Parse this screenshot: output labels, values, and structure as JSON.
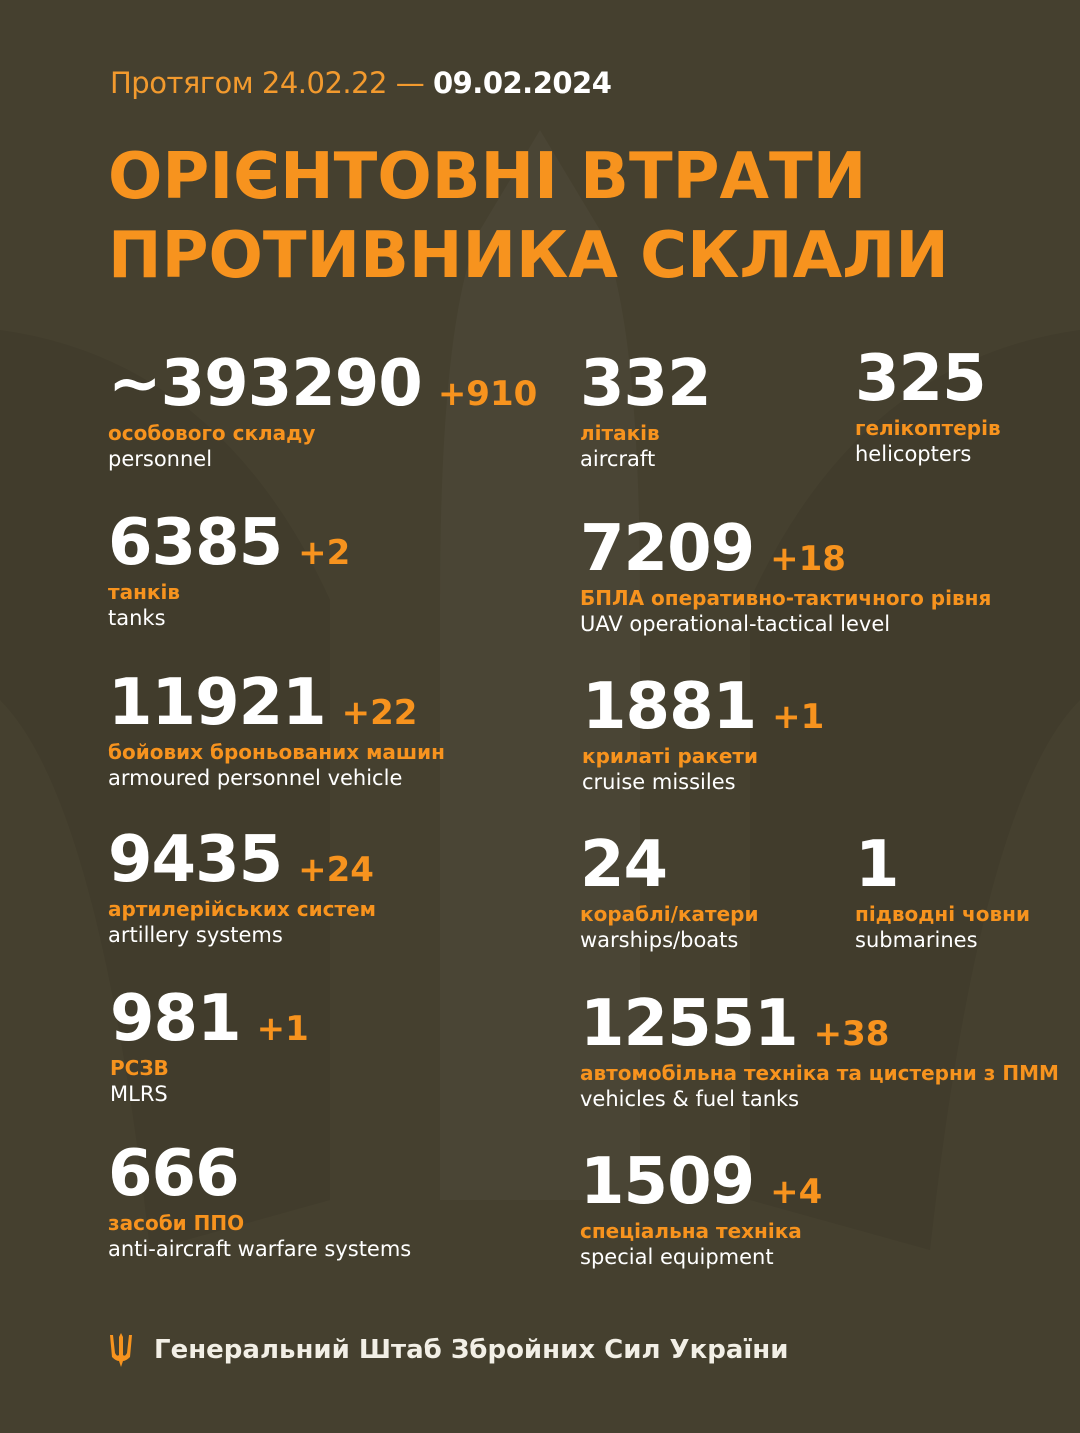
{
  "header": {
    "period_prefix": "Протягом 24.02.22 —",
    "period_end": "09.02.2024"
  },
  "title": {
    "line1": "ОРІЄНТОВНІ ВТРАТИ",
    "line2": "ПРОТИВНИКА СКЛАЛИ"
  },
  "colors": {
    "background": "#45402f",
    "accent": "#f7931e",
    "text": "#ffffff"
  },
  "items": [
    {
      "id": "personnel",
      "value": "~393290",
      "delta": "+910",
      "ua": "особового складу",
      "en": "personnel"
    },
    {
      "id": "aircraft",
      "value": "332",
      "delta": "",
      "ua": "літаків",
      "en": "aircraft"
    },
    {
      "id": "helicopters",
      "value": "325",
      "delta": "",
      "ua": "гелікоптерів",
      "en": "helicopters"
    },
    {
      "id": "tanks",
      "value": "6385",
      "delta": "+2",
      "ua": "танків",
      "en": "tanks"
    },
    {
      "id": "uav",
      "value": "7209",
      "delta": "+18",
      "ua": "БПЛА оперативно-тактичного рівня",
      "en": "UAV operational-tactical level"
    },
    {
      "id": "apv",
      "value": "11921",
      "delta": "+22",
      "ua": "бойових броньованих машин",
      "en": "armoured personnel vehicle"
    },
    {
      "id": "cruise-missiles",
      "value": "1881",
      "delta": "+1",
      "ua": "крилаті ракети",
      "en": "cruise missiles"
    },
    {
      "id": "artillery",
      "value": "9435",
      "delta": "+24",
      "ua": "артилерійських систем",
      "en": "artillery systems"
    },
    {
      "id": "warships",
      "value": "24",
      "delta": "",
      "ua": "кораблі/катери",
      "en": "warships/boats"
    },
    {
      "id": "submarines",
      "value": "1",
      "delta": "",
      "ua": "підводні човни",
      "en": "submarines"
    },
    {
      "id": "mlrs",
      "value": "981",
      "delta": "+1",
      "ua": "РСЗВ",
      "en": "MLRS"
    },
    {
      "id": "vehicles",
      "value": "12551",
      "delta": "+38",
      "ua": "автомобільна техніка та цистерни з ПММ",
      "en": "vehicles & fuel tanks"
    },
    {
      "id": "anti-aircraft",
      "value": "666",
      "delta": "",
      "ua": "засоби ППО",
      "en": "anti-aircraft warfare systems"
    },
    {
      "id": "special-equipment",
      "value": "1509",
      "delta": "+4",
      "ua": "спеціальна техніка",
      "en": "special equipment"
    }
  ],
  "footer": {
    "icon": "trident-icon",
    "text": "Генеральний Штаб Збройних Сил України"
  }
}
